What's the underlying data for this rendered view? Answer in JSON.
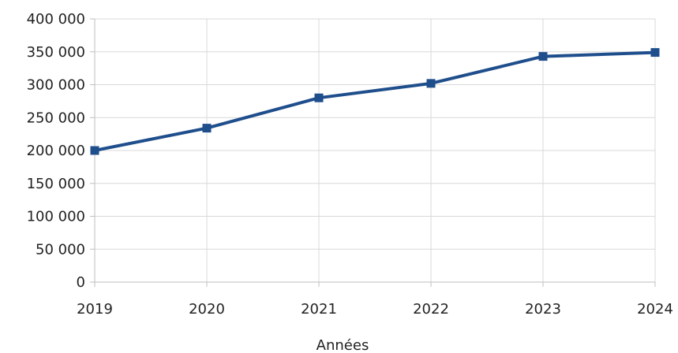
{
  "chart_data": {
    "type": "line",
    "x": [
      "2019",
      "2020",
      "2021",
      "2022",
      "2023",
      "2024"
    ],
    "series": [
      {
        "values": [
          200000,
          234000,
          280000,
          302000,
          343000,
          349000
        ]
      }
    ],
    "xlabel": "Années",
    "ylabel": "",
    "ylim": [
      0,
      400000
    ],
    "yticks": [
      0,
      50000,
      100000,
      150000,
      200000,
      250000,
      300000,
      350000,
      400000
    ],
    "ytick_labels": [
      "0",
      "50 000",
      "100 000",
      "150 000",
      "200 000",
      "250 000",
      "300 000",
      "350 000",
      "400 000"
    ],
    "grid": true,
    "legend": "none",
    "line_color": "#1f4e8c",
    "grid_color": "#d9d9d9",
    "axis_color": "#bfbfbf"
  }
}
